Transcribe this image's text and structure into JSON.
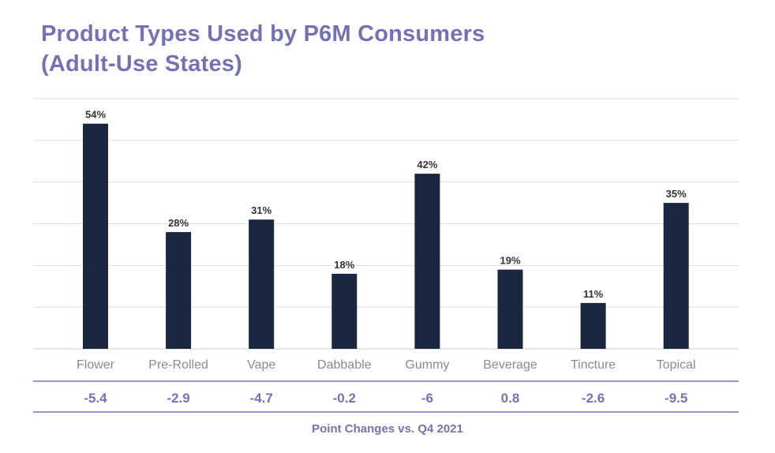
{
  "chart_data": {
    "type": "bar",
    "title": "Product Types Used by P6M Consumers (Adult-Use States)",
    "title_lines": [
      "Product Types Used by P6M Consumers",
      "(Adult-Use States)"
    ],
    "categories": [
      "Flower",
      "Pre-Rolled",
      "Vape",
      "Dabbable",
      "Gummy",
      "Beverage",
      "Tincture",
      "Topical"
    ],
    "values": [
      54,
      28,
      31,
      18,
      42,
      19,
      11,
      35
    ],
    "data_labels": [
      "54%",
      "28%",
      "31%",
      "18%",
      "42%",
      "19%",
      "11%",
      "35%"
    ],
    "unit": "%",
    "ylim": [
      0,
      60
    ],
    "grid": true,
    "point_changes": {
      "label": "Point Changes vs. Q4 2021",
      "values": [
        "-5.4",
        "-2.9",
        "-4.7",
        "-0.2",
        "-6",
        "0.8",
        "-2.6",
        "-9.5"
      ]
    },
    "colors": {
      "bar": "#1b2640",
      "title": "#7472b4",
      "grid": "#dddddd",
      "axis_label": "#8a8a8a"
    }
  }
}
